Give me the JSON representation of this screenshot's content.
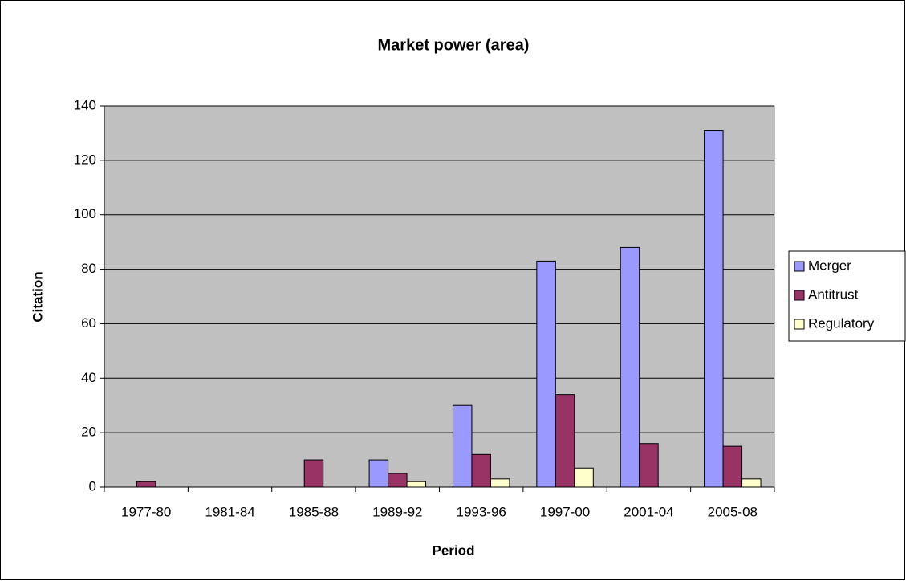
{
  "chart_data": {
    "type": "bar",
    "title": "Market power (area)",
    "x_label": "Period",
    "y_label": "Citation",
    "categories": [
      "1977-80",
      "1981-84",
      "1985-88",
      "1989-92",
      "1993-96",
      "1997-00",
      "2001-04",
      "2005-08"
    ],
    "series": [
      {
        "name": "Merger",
        "color": "#9999ff",
        "values": [
          0,
          0,
          0,
          10,
          30,
          83,
          88,
          131
        ]
      },
      {
        "name": "Antitrust",
        "color": "#993366",
        "values": [
          2,
          0,
          10,
          5,
          12,
          34,
          16,
          15
        ]
      },
      {
        "name": "Regulatory",
        "color": "#ffffcc",
        "values": [
          0,
          0,
          0,
          2,
          3,
          7,
          0,
          3
        ]
      }
    ],
    "ylim": [
      0,
      140
    ],
    "yticks": [
      0,
      20,
      40,
      60,
      80,
      100,
      120,
      140
    ],
    "grid": true,
    "legend": "right"
  }
}
